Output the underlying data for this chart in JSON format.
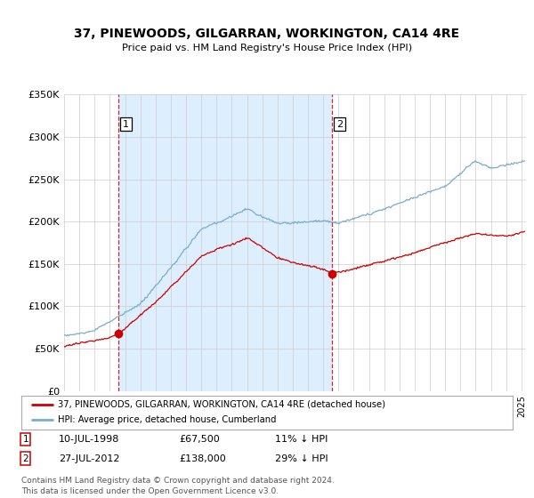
{
  "title": "37, PINEWOODS, GILGARRAN, WORKINGTON, CA14 4RE",
  "subtitle": "Price paid vs. HM Land Registry's House Price Index (HPI)",
  "ylim": [
    0,
    350000
  ],
  "yticks": [
    0,
    50000,
    100000,
    150000,
    200000,
    250000,
    300000,
    350000
  ],
  "sale1_date": 1998.54,
  "sale1_price": 67500,
  "sale2_date": 2012.57,
  "sale2_price": 138000,
  "legend_line1": "37, PINEWOODS, GILGARRAN, WORKINGTON, CA14 4RE (detached house)",
  "legend_line2": "HPI: Average price, detached house, Cumberland",
  "footnote1": "Contains HM Land Registry data © Crown copyright and database right 2024.",
  "footnote2": "This data is licensed under the Open Government Licence v3.0.",
  "red_color": "#cc0000",
  "blue_color": "#7aacce",
  "shade_color": "#ddeeff",
  "background_color": "#ffffff",
  "grid_color": "#cccccc",
  "xlim_left": 1995,
  "xlim_right": 2025.3
}
